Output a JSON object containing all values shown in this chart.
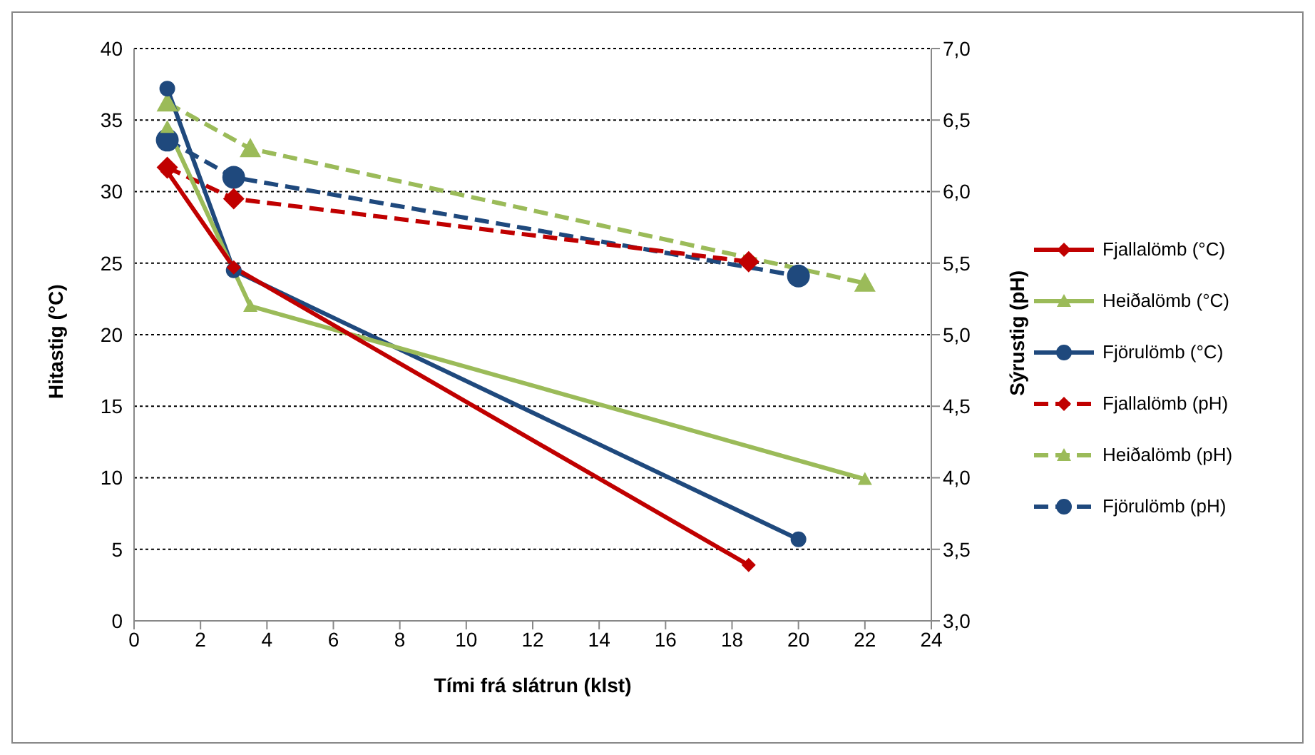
{
  "chart_data": {
    "type": "line",
    "xlabel": "Tími frá slátrun (klst)",
    "ylabel": "Hitastig (°C)",
    "y2label": "Sýrustig (pH)",
    "xlim": [
      0,
      24
    ],
    "xticks": [
      0,
      2,
      4,
      6,
      8,
      10,
      12,
      14,
      16,
      18,
      20,
      22,
      24
    ],
    "ylim": [
      0,
      40
    ],
    "yticks": [
      0,
      5,
      10,
      15,
      20,
      25,
      30,
      35,
      40
    ],
    "y2lim": [
      3,
      7
    ],
    "y2ticks": [
      {
        "value": 3,
        "label": "3,0"
      },
      {
        "value": 3.5,
        "label": "3,5"
      },
      {
        "value": 4,
        "label": "4,0"
      },
      {
        "value": 4.5,
        "label": "4,5"
      },
      {
        "value": 5,
        "label": "5,0"
      },
      {
        "value": 5.5,
        "label": "5,5"
      },
      {
        "value": 6,
        "label": "6,0"
      },
      {
        "value": 6.5,
        "label": "6,5"
      },
      {
        "value": 7,
        "label": "7,0"
      }
    ],
    "grid": "y",
    "legend": "right",
    "series": [
      {
        "name": "Fjallalömb (°C)",
        "color": "#c00000",
        "marker": "diamond",
        "line_style": "solid",
        "x": [
          1,
          3,
          18.5
        ],
        "values": [
          31.4,
          24.7,
          3.9
        ]
      },
      {
        "name": "Heiðalömb (°C)",
        "color": "#9bbb59",
        "marker": "triangle",
        "line_style": "solid",
        "x": [
          1,
          3.5,
          22
        ],
        "values": [
          34.5,
          22,
          9.9
        ]
      },
      {
        "name": "Fjörulömb (°C)",
        "color": "#1f497d",
        "marker": "circle",
        "line_style": "solid",
        "x": [
          1,
          3,
          20
        ],
        "values": [
          37.2,
          24.5,
          5.7
        ]
      },
      {
        "name": "Fjallalömb (pH)",
        "color": "#c00000",
        "marker": "diamond",
        "line_style": "dashed",
        "axis": "y2",
        "x": [
          1,
          3,
          18.5
        ],
        "values": [
          6.17,
          5.95,
          5.51
        ]
      },
      {
        "name": "Heiðalömb (pH)",
        "color": "#9bbb59",
        "marker": "triangle",
        "line_style": "dashed",
        "axis": "y2",
        "x": [
          1,
          3.5,
          22
        ],
        "values": [
          6.62,
          6.3,
          5.36
        ]
      },
      {
        "name": "Fjörulömb (pH)",
        "color": "#1f497d",
        "marker": "circle",
        "line_style": "dashed",
        "axis": "y2",
        "x": [
          1,
          3,
          20
        ],
        "values": [
          6.36,
          6.1,
          5.41
        ]
      }
    ]
  }
}
